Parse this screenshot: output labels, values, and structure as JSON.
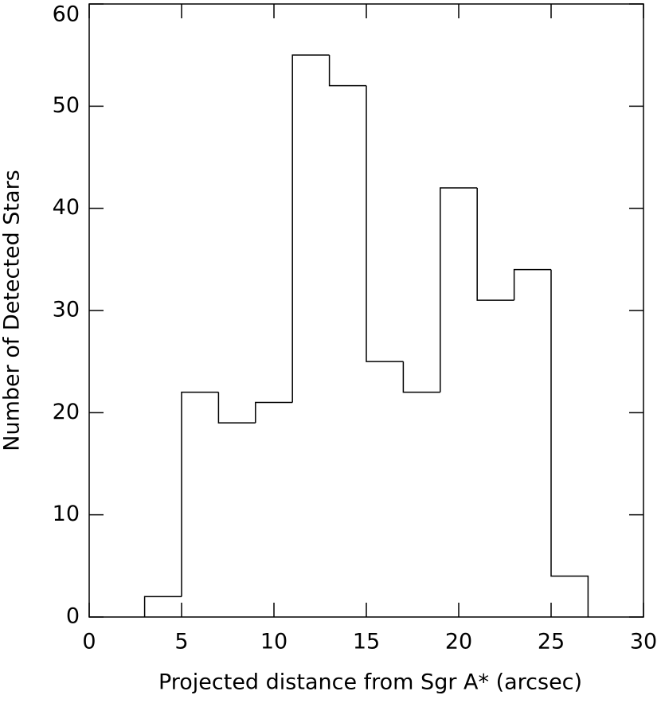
{
  "chart_data": {
    "type": "histogram",
    "xlabel": "Projected distance from Sgr A* (arcsec)",
    "ylabel": "Number of Detected Stars",
    "bins": [
      3,
      5,
      7,
      9,
      11,
      13,
      15,
      17,
      19,
      21,
      23,
      25,
      27
    ],
    "values": [
      2,
      22,
      19,
      21,
      55,
      52,
      25,
      22,
      42,
      31,
      34,
      4
    ],
    "color": "#000000",
    "xlim": [
      0,
      30
    ],
    "xticks": [
      0,
      5,
      10,
      15,
      20,
      25,
      30
    ],
    "ylim": [
      0,
      60
    ],
    "yticks": [
      0,
      10,
      20,
      30,
      40,
      50,
      60
    ]
  }
}
